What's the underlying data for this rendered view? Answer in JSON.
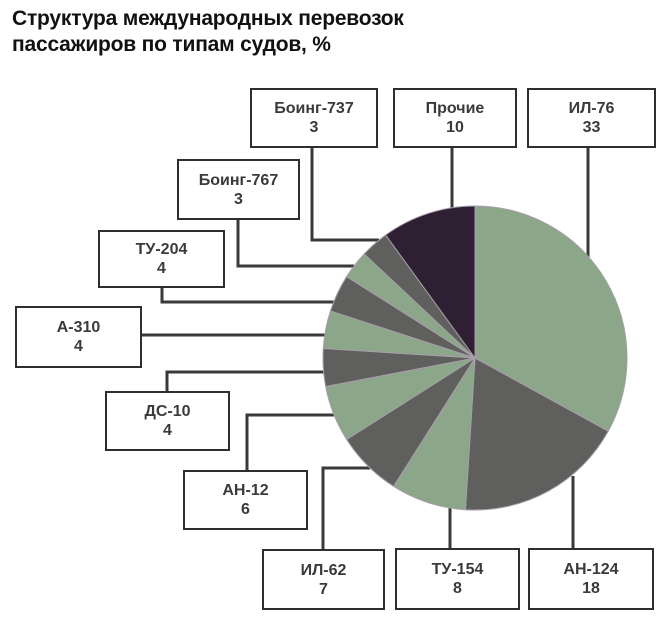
{
  "title": "Структура международных перевозок\nпассажиров по типам судов, %",
  "chart_data": {
    "type": "pie",
    "title": "Структура международных перевозок пассажиров по типам судов, %",
    "unit": "%",
    "start_angle_deg": 0,
    "direction": "clockwise",
    "legend_position": "callout-boxes",
    "palette": {
      "green": "#8ca689",
      "gray": "#5f5f5d",
      "dark_purple": "#2f1f33"
    },
    "slices": [
      {
        "name": "ИЛ-76",
        "value": 33,
        "color": "#8ca689"
      },
      {
        "name": "АН-124",
        "value": 18,
        "color": "#5f5f5d"
      },
      {
        "name": "ТУ-154",
        "value": 8,
        "color": "#8ca689"
      },
      {
        "name": "ИЛ-62",
        "value": 7,
        "color": "#5f5f5d"
      },
      {
        "name": "АН-12",
        "value": 6,
        "color": "#8ca689"
      },
      {
        "name": "ДС-10",
        "value": 4,
        "color": "#5f5f5d"
      },
      {
        "name": "А-310",
        "value": 4,
        "color": "#8ca689"
      },
      {
        "name": "ТУ-204",
        "value": 4,
        "color": "#5f5f5d"
      },
      {
        "name": "Боинг-767",
        "value": 3,
        "color": "#8ca689"
      },
      {
        "name": "Боинг-737",
        "value": 3,
        "color": "#5f5f5d"
      },
      {
        "name": "Прочие",
        "value": 10,
        "color": "#2f1f33"
      }
    ]
  }
}
